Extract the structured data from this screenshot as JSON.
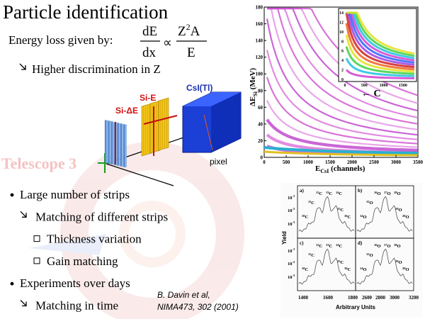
{
  "title": "Particle identification",
  "formula": {
    "lead": "Energy loss given by:",
    "lhs_num": "dE",
    "lhs_den": "dx",
    "relation": "∝",
    "rhs_num": {
      "base": "Z",
      "sup": "2",
      "rest": "A"
    },
    "rhs_den": "E"
  },
  "subpoint": "Higher discrimination in Z",
  "watermark": "Telescope 3",
  "detector": {
    "csi": "CsI(Tl)",
    "si_e": "Si-E",
    "si_de": "Si-ΔE",
    "pixel": "pixel"
  },
  "bullets": [
    {
      "level": 1,
      "text": "Large number of strips"
    },
    {
      "level": 2,
      "text": "Matching of different strips"
    },
    {
      "level": 3,
      "text": "Thickness variation"
    },
    {
      "level": 3,
      "text": "Gain matching"
    },
    {
      "level": 1,
      "text": "Experiments over days"
    },
    {
      "level": 2,
      "text": "Matching in time"
    }
  ],
  "citation": [
    "B. Davin et al,",
    "NIMA473, 302 (2001)"
  ],
  "pid_plot": {
    "xlabel": {
      "main": "E",
      "sub": "CsI",
      "unit": " (channels)"
    },
    "ylabel": {
      "main": "ΔE",
      "sub": "Si",
      "unit": " (MeV)"
    },
    "annotation": "← C",
    "xticks": [
      "0",
      "500",
      "1000",
      "1500",
      "2000",
      "2500",
      "3000",
      "3500"
    ],
    "yticks": [
      "0",
      "20",
      "40",
      "60",
      "80",
      "100",
      "120",
      "140",
      "160",
      "180"
    ],
    "inset_xticks": [
      "0",
      "500",
      "1000",
      "1500"
    ],
    "inset_yticks": [
      "0",
      "2",
      "4",
      "6",
      "8",
      "10",
      "12",
      "14"
    ]
  },
  "yield_plot": {
    "ylabel": "Yield",
    "xlabel": "Arbitrary Units",
    "xticks": [
      "1400",
      "1600",
      "1800",
      "2600",
      "2800",
      "3000",
      "3200"
    ],
    "yticks": [
      {
        "base": "10",
        "exp": "-1"
      },
      {
        "base": "10",
        "exp": "-2"
      },
      {
        "base": "10",
        "exp": "-3"
      },
      {
        "base": "10",
        "exp": "-1"
      },
      {
        "base": "10",
        "exp": "-2"
      },
      {
        "base": "10",
        "exp": "-3"
      }
    ],
    "panels": [
      {
        "label": "a)",
        "peaks": [
          {
            "m": "12",
            "e": "C"
          },
          {
            "m": "13",
            "e": "C"
          },
          {
            "m": "14",
            "e": "C"
          },
          {
            "m": "11",
            "e": "C"
          },
          {
            "m": "15",
            "e": "C"
          },
          {
            "m": "10",
            "e": "C"
          },
          {
            "m": "16",
            "e": "C"
          }
        ]
      },
      {
        "label": "b)",
        "peaks": [
          {
            "m": "16",
            "e": "O"
          },
          {
            "m": "17",
            "e": "O"
          },
          {
            "m": "18",
            "e": "O"
          },
          {
            "m": "15",
            "e": "O"
          },
          {
            "m": "19",
            "e": "O"
          },
          {
            "m": "14",
            "e": "O"
          },
          {
            "m": "20",
            "e": "O"
          }
        ]
      },
      {
        "label": "c)",
        "peaks": [
          {
            "m": "12",
            "e": "C"
          },
          {
            "m": "13",
            "e": "C"
          },
          {
            "m": "14",
            "e": "C"
          },
          {
            "m": "11",
            "e": "C"
          },
          {
            "m": "15",
            "e": "C"
          },
          {
            "m": "10",
            "e": "C"
          },
          {
            "m": "16",
            "e": "C"
          }
        ]
      },
      {
        "label": "d)",
        "peaks": [
          {
            "m": "16",
            "e": "O"
          },
          {
            "m": "17",
            "e": "O"
          },
          {
            "m": "18",
            "e": "O"
          },
          {
            "m": "15",
            "e": "O"
          },
          {
            "m": "19",
            "e": "O"
          },
          {
            "m": "14",
            "e": "O"
          },
          {
            "m": "20",
            "e": "O"
          }
        ]
      }
    ]
  }
}
